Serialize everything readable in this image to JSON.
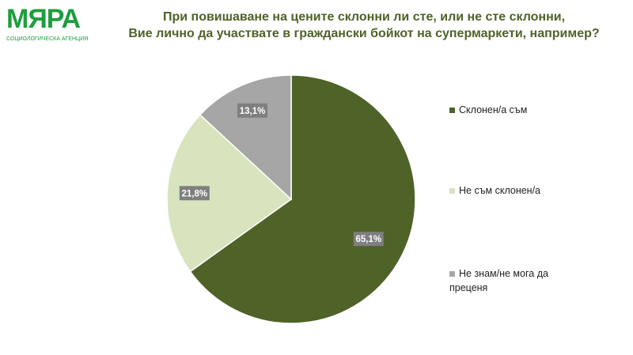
{
  "logo": {
    "name": "МЯРА",
    "subtitle": "СОЦИОЛОГИЧЕСКА АГЕНЦИЯ"
  },
  "chart_data": {
    "type": "pie",
    "title": [
      "При повишаване на цените склонни ли сте, или не сте склонни,",
      "Вие лично да участвате в граждански бойкот на супермаркети, например?"
    ],
    "start": "top",
    "direction": "clockwise",
    "legend_position": "right",
    "slices": [
      {
        "name": "Склонен/а съм",
        "value": 65.1,
        "label": "65,1%",
        "color": "#4f6228"
      },
      {
        "name": "Не съм склонен/а",
        "value": 21.8,
        "label": "21,8%",
        "color": "#d7e4bd"
      },
      {
        "name": "Не знам/не мога да преценя",
        "value": 13.1,
        "label": "13,1%",
        "color": "#a6a6a6"
      }
    ]
  }
}
